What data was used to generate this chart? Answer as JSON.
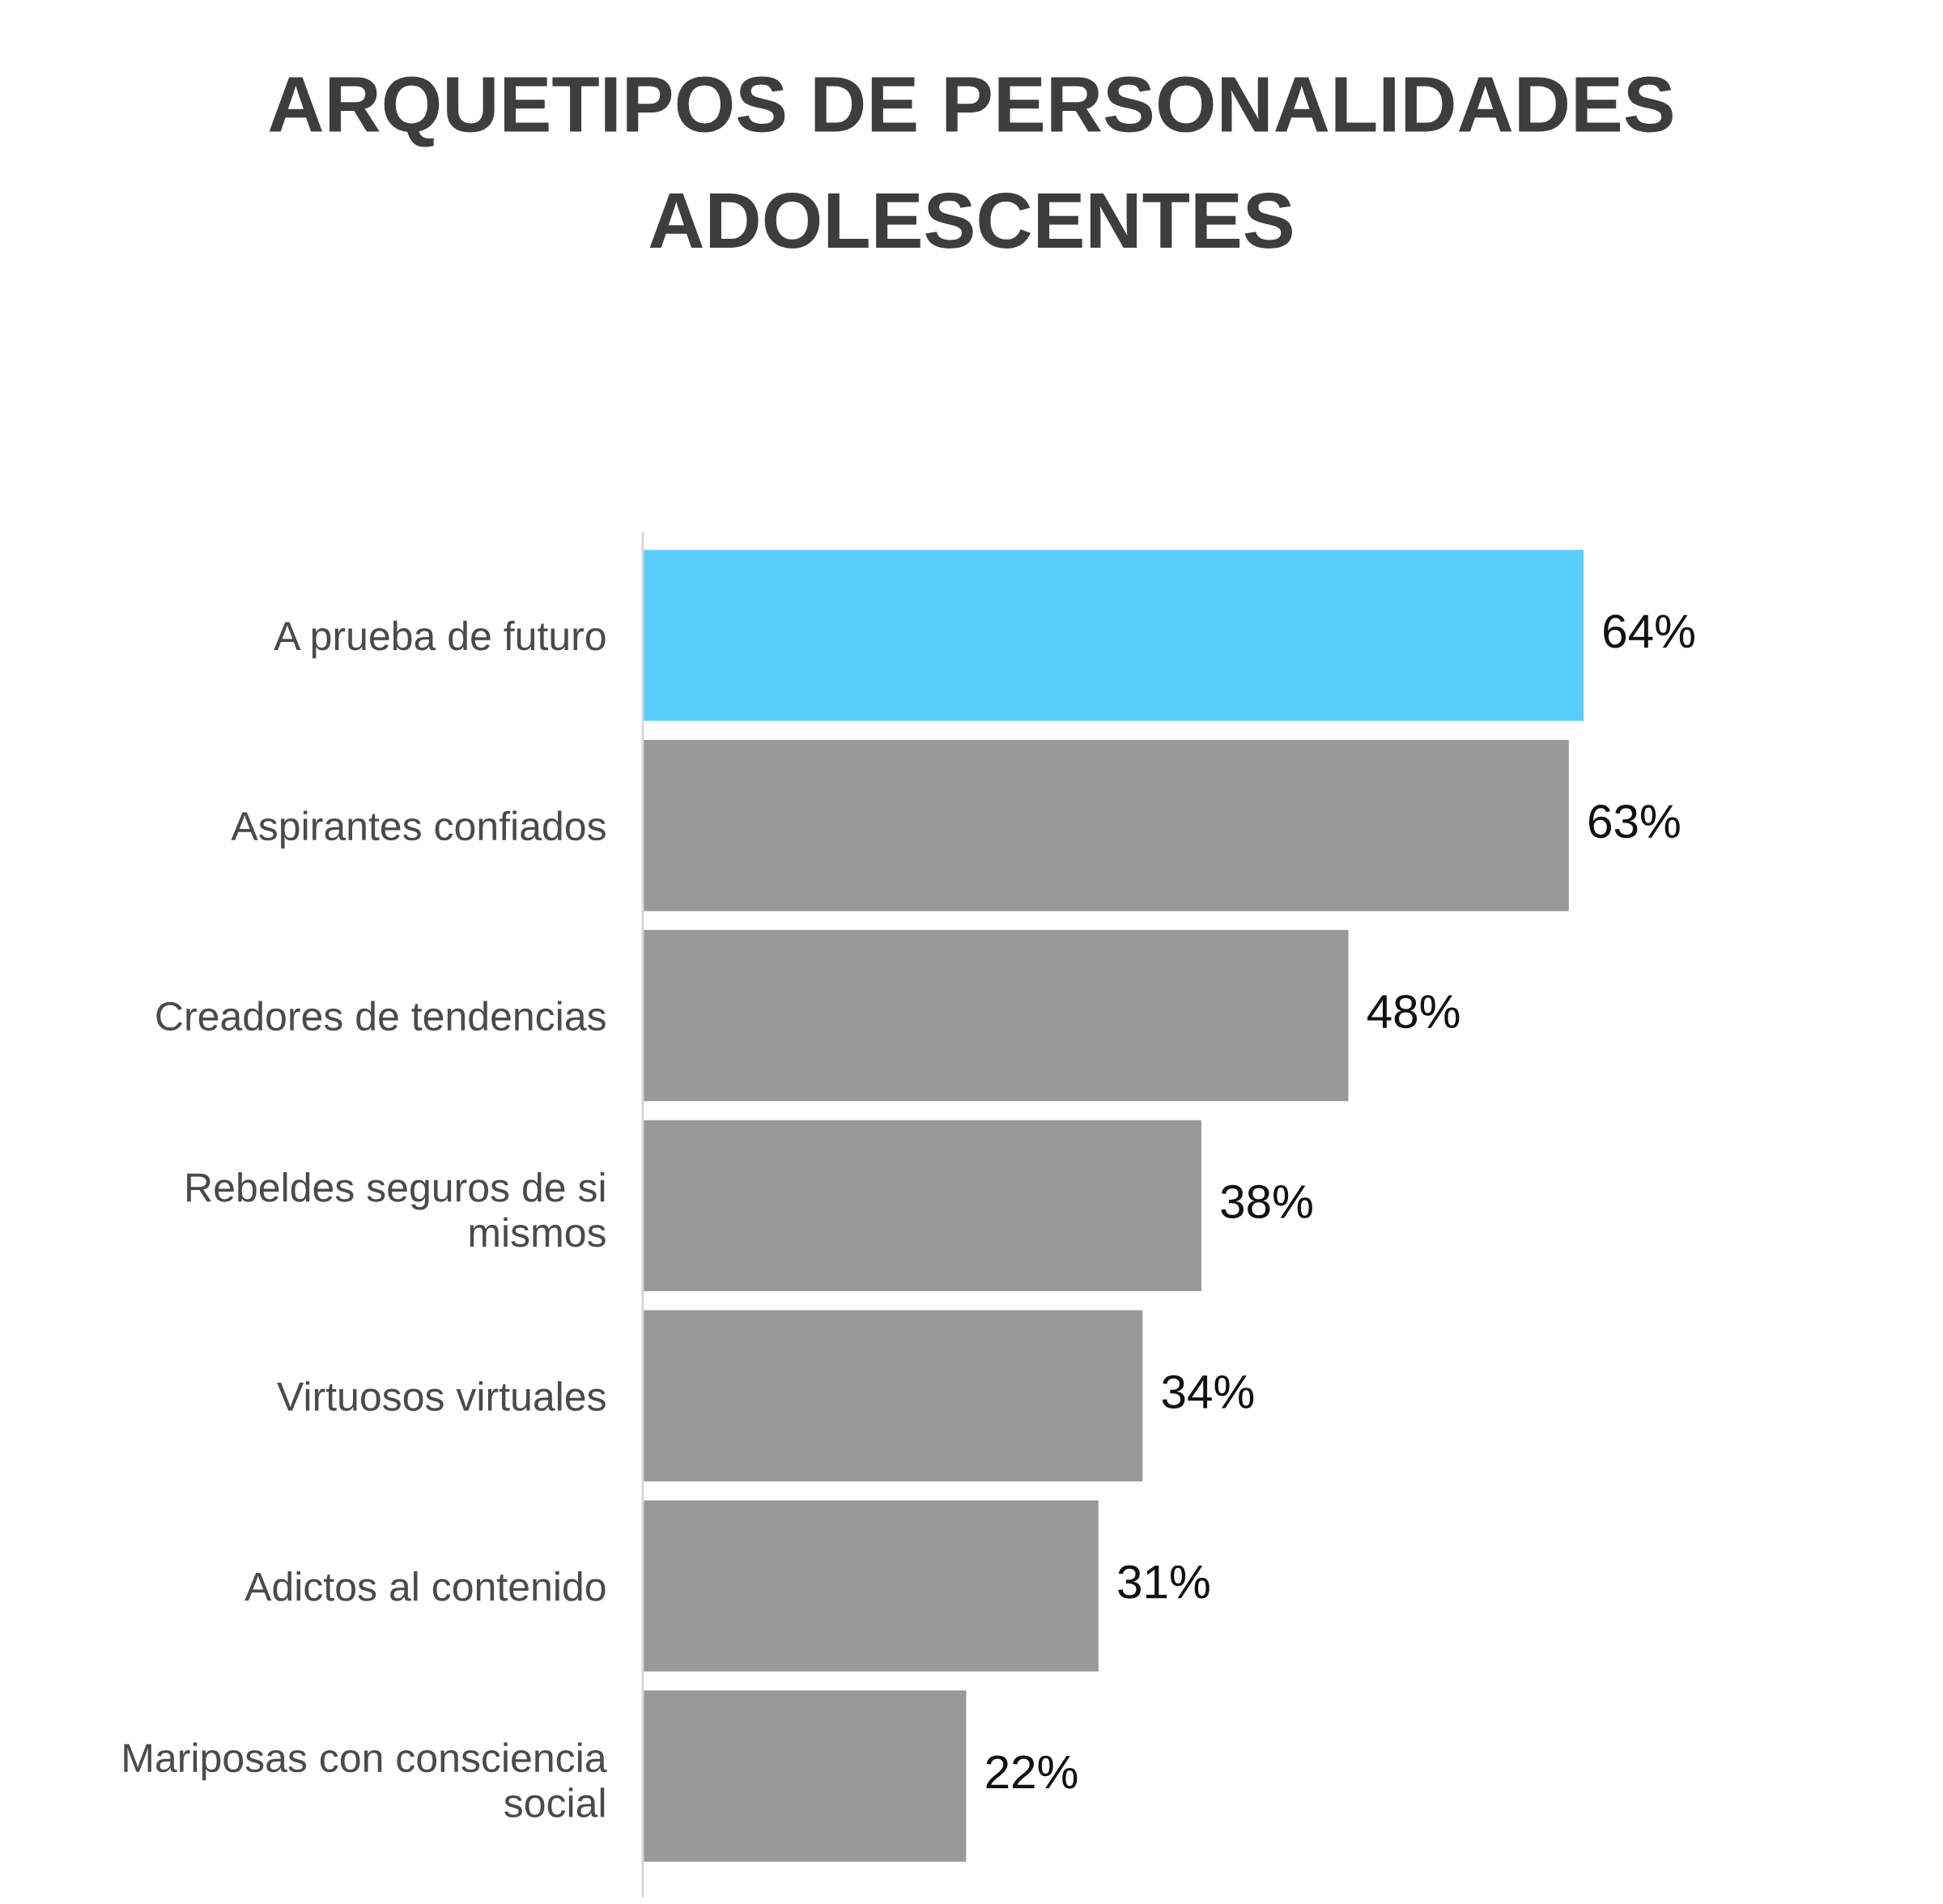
{
  "chart_data": {
    "type": "bar",
    "orientation": "horizontal",
    "title": "ARQUETIPOS DE PERSONALIDADES ADOLESCENTES",
    "categories": [
      "A prueba de futuro",
      "Aspirantes confiados",
      "Creadores de tendencias",
      "Rebeldes seguros de si\nmismos",
      "Virtuosos virtuales",
      "Adictos al contenido",
      "Mariposas con consciencia\nsocial"
    ],
    "values": [
      64,
      63,
      48,
      38,
      34,
      31,
      22
    ],
    "colors": [
      "#5bcdfc",
      "#999999",
      "#999999",
      "#999999",
      "#999999",
      "#999999",
      "#999999"
    ],
    "value_labels": [
      "64%",
      "63%",
      "48%",
      "38%",
      "34%",
      "31%",
      "22%"
    ],
    "tick_labels": "y",
    "grid": false,
    "legend": false
  }
}
